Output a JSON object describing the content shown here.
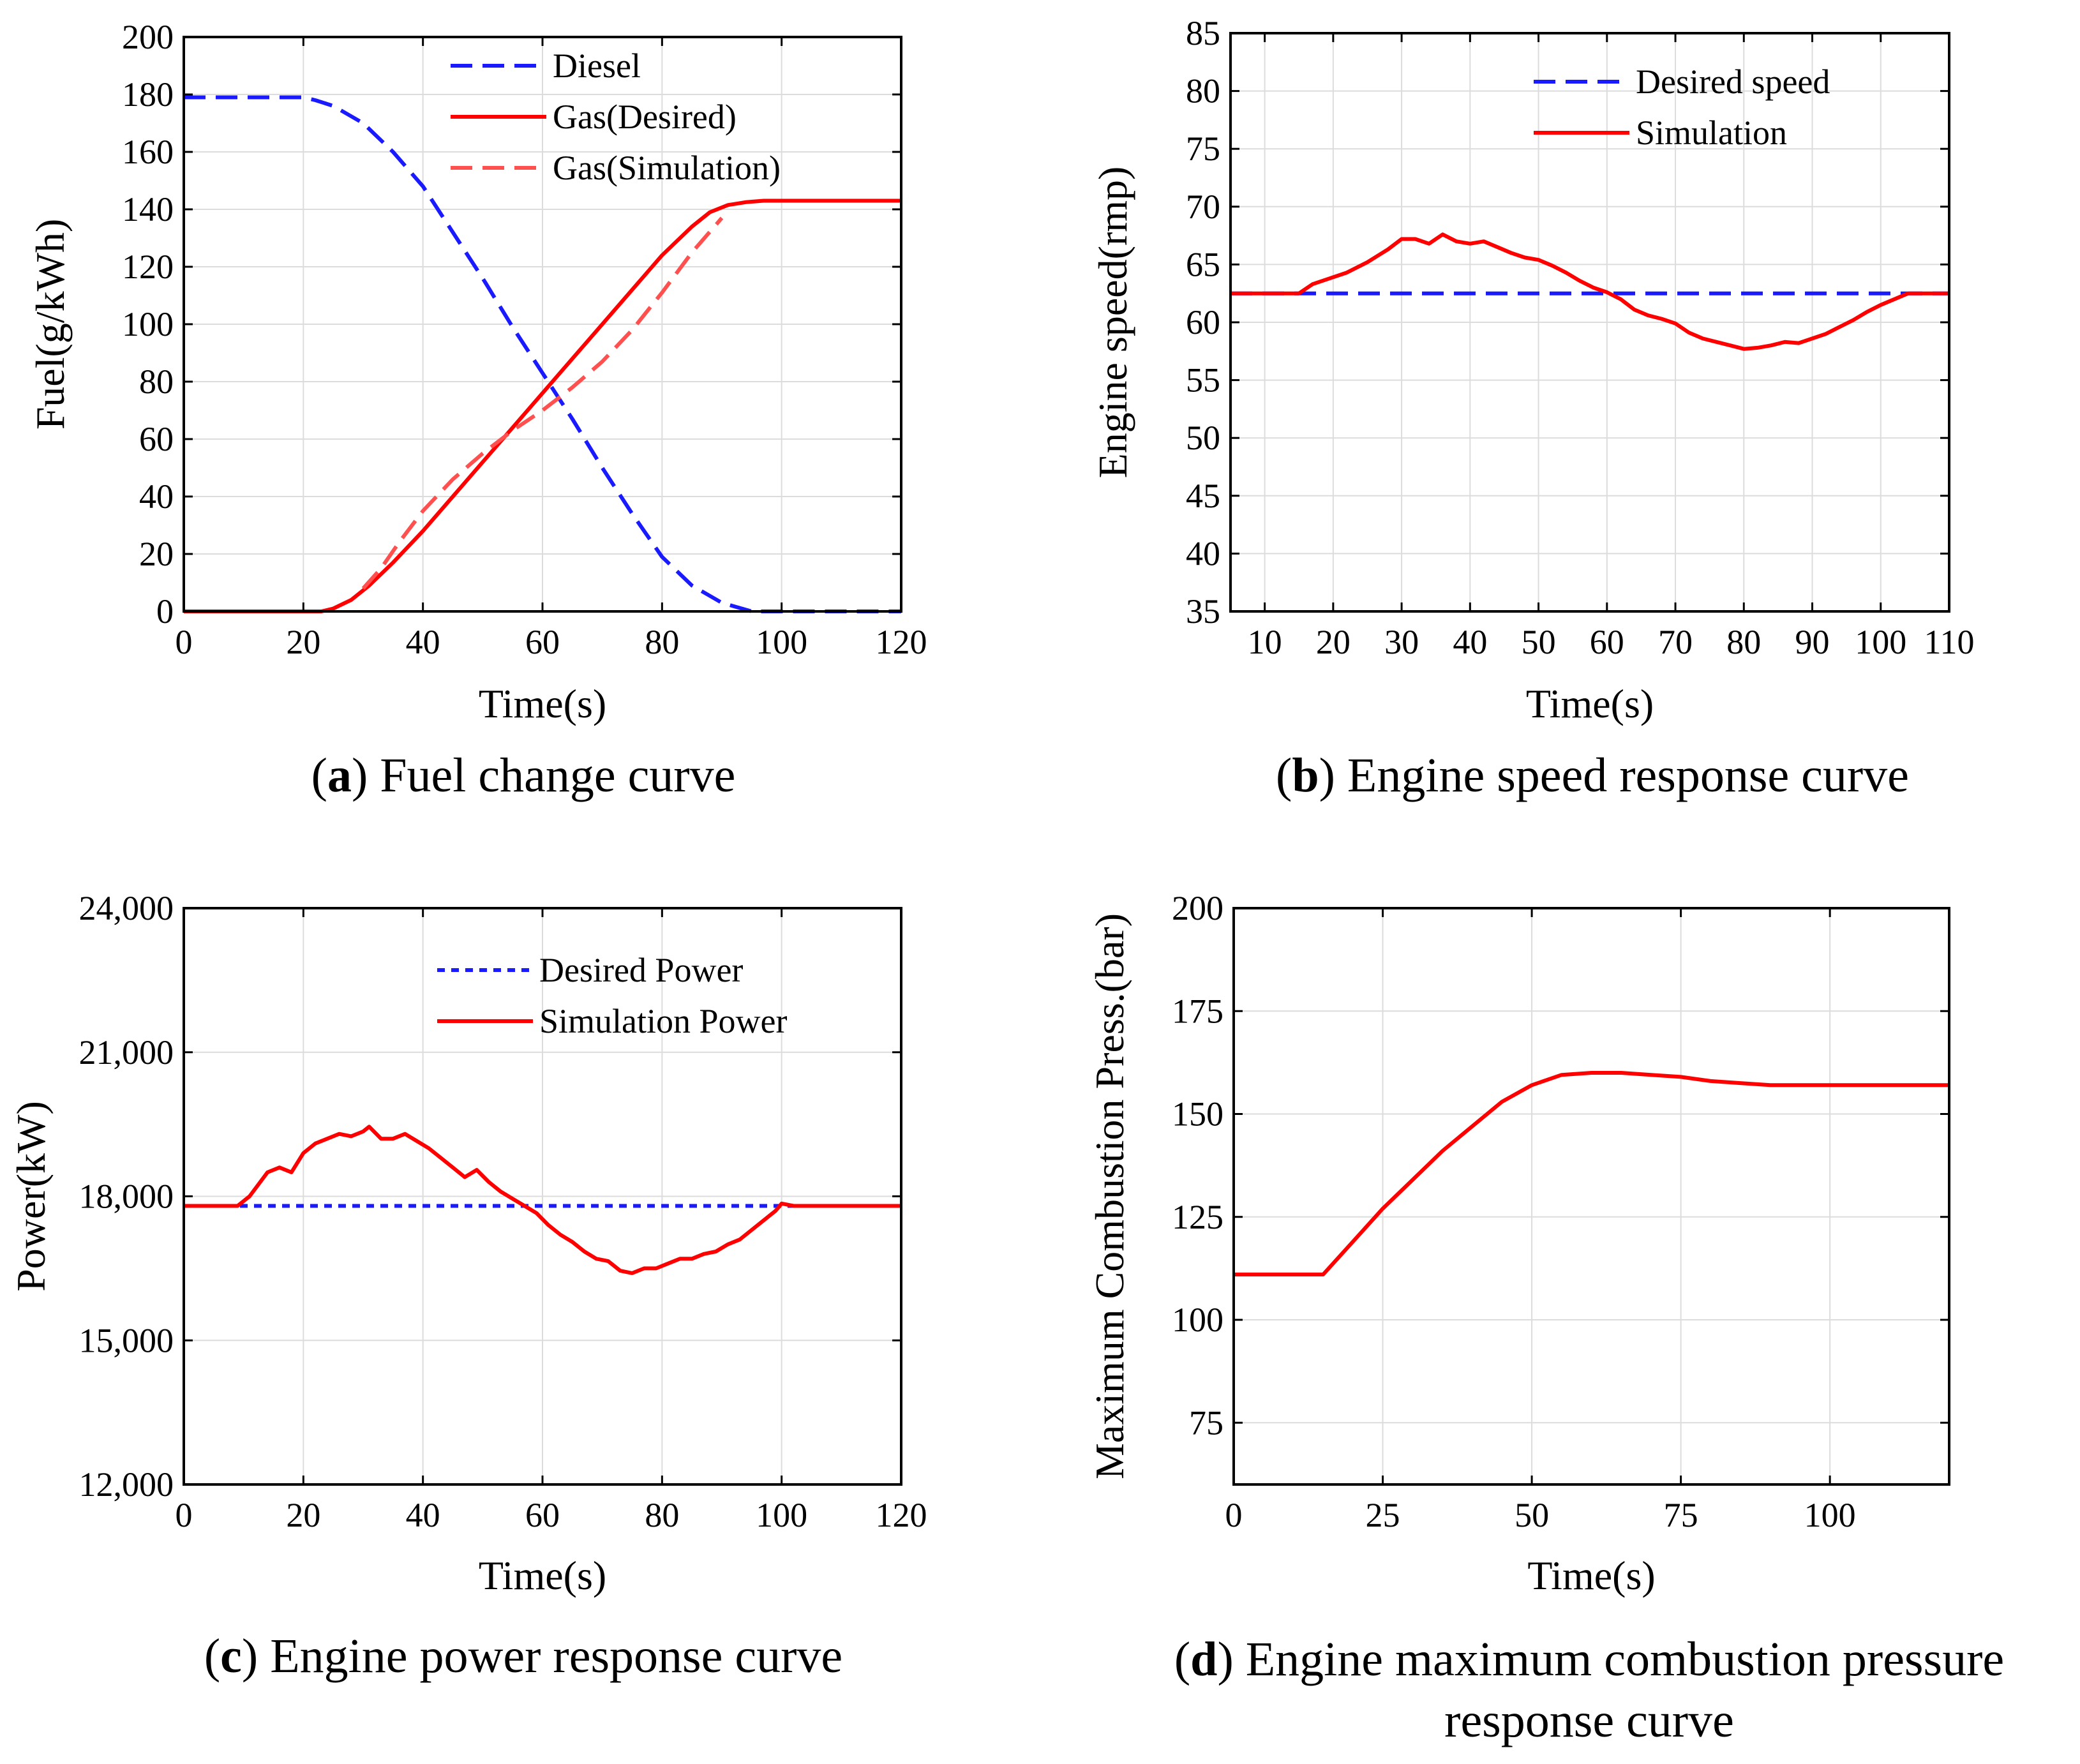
{
  "colors": {
    "blue": "#1a1aff",
    "red": "#ff0000",
    "light_red": "#ff5050",
    "grid": "#dcdcdc",
    "axis": "#000000"
  },
  "chart_data": [
    {
      "id": "a",
      "type": "line",
      "caption_letter": "a",
      "caption_text": " Fuel change curve",
      "xlabel": "Time(s)",
      "ylabel": "Fuel(g/kWh)",
      "xlim": [
        0,
        120
      ],
      "ylim": [
        0,
        200
      ],
      "xticks": [
        0,
        20,
        40,
        60,
        80,
        100,
        120
      ],
      "yticks": [
        0,
        20,
        40,
        60,
        80,
        100,
        120,
        140,
        160,
        180,
        200
      ],
      "xtick_labels": [
        "0",
        "20",
        "40",
        "60",
        "80",
        "100",
        "120"
      ],
      "ytick_labels": [
        "0",
        "20",
        "40",
        "60",
        "80",
        "100",
        "120",
        "140",
        "160",
        "180",
        "200"
      ],
      "grid": true,
      "legend": "top-center",
      "series": [
        {
          "name": "Diesel",
          "color": "#1a1aff",
          "style": "dashed",
          "x": [
            0,
            10,
            20,
            22,
            25,
            30,
            35,
            40,
            45,
            50,
            55,
            60,
            65,
            70,
            75,
            80,
            85,
            90,
            95,
            100,
            105,
            110,
            120
          ],
          "y": [
            179,
            179,
            179,
            178,
            176,
            170,
            160,
            148,
            132,
            116,
            99,
            83,
            67,
            50,
            34,
            19,
            9,
            3,
            0,
            0,
            0,
            0,
            0
          ]
        },
        {
          "name": "Gas(Desired)",
          "color": "#ff0000",
          "style": "solid",
          "x": [
            0,
            10,
            20,
            23,
            25,
            28,
            31,
            35,
            40,
            45,
            50,
            55,
            60,
            65,
            70,
            75,
            80,
            85,
            88,
            91,
            94,
            97,
            100,
            105,
            110,
            120
          ],
          "y": [
            0,
            0,
            0,
            0,
            1,
            4,
            9,
            17,
            28,
            40,
            52,
            64,
            76,
            88,
            100,
            112,
            124,
            134,
            139,
            141.5,
            142.5,
            143,
            143,
            143,
            143,
            143
          ]
        },
        {
          "name": "Gas(Simulation)",
          "color": "#ff5050",
          "style": "dashed",
          "x": [
            30,
            33,
            36,
            40,
            45,
            50,
            55,
            60,
            65,
            70,
            75,
            80,
            85,
            90
          ],
          "y": [
            8,
            15,
            24,
            35,
            46,
            55,
            63,
            70,
            78,
            87,
            98,
            111,
            125,
            137
          ]
        }
      ]
    },
    {
      "id": "b",
      "type": "line",
      "caption_letter": "b",
      "caption_text": " Engine speed response curve",
      "xlabel": "Time(s)",
      "ylabel": "Engine speed(rmp)",
      "xlim": [
        5,
        110
      ],
      "ylim": [
        35,
        85
      ],
      "xticks": [
        10,
        20,
        30,
        40,
        50,
        60,
        70,
        80,
        90,
        100,
        110
      ],
      "yticks": [
        35,
        40,
        45,
        50,
        55,
        60,
        65,
        70,
        75,
        80,
        85
      ],
      "xtick_labels": [
        "10",
        "20",
        "30",
        "40",
        "50",
        "60",
        "70",
        "80",
        "90",
        "100",
        "110"
      ],
      "ytick_labels": [
        "35",
        "40",
        "45",
        "50",
        "55",
        "60",
        "65",
        "70",
        "75",
        "80",
        "85"
      ],
      "grid": true,
      "legend": "top-right",
      "series": [
        {
          "name": "Desired speed",
          "color": "#1a1aff",
          "style": "dashed",
          "x": [
            5,
            110
          ],
          "y": [
            62.5,
            62.5
          ]
        },
        {
          "name": "Simulation",
          "color": "#ff0000",
          "style": "solid",
          "x": [
            5,
            15,
            17,
            20,
            22,
            25,
            28,
            30,
            32,
            34,
            36,
            38,
            40,
            42,
            44,
            46,
            48,
            50,
            52,
            54,
            56,
            58,
            60,
            62,
            64,
            66,
            68,
            70,
            72,
            74,
            76,
            78,
            80,
            82,
            84,
            86,
            88,
            90,
            92,
            94,
            96,
            98,
            100,
            102,
            104,
            106,
            110
          ],
          "y": [
            62.5,
            62.5,
            63.3,
            63.9,
            64.3,
            65.2,
            66.3,
            67.2,
            67.2,
            66.8,
            67.6,
            67.0,
            66.8,
            67.0,
            66.5,
            66.0,
            65.6,
            65.4,
            64.9,
            64.3,
            63.6,
            63.0,
            62.6,
            62.0,
            61.1,
            60.6,
            60.3,
            59.9,
            59.1,
            58.6,
            58.3,
            58.0,
            57.7,
            57.8,
            58.0,
            58.3,
            58.2,
            58.6,
            59.0,
            59.6,
            60.2,
            60.9,
            61.5,
            62.0,
            62.5,
            62.5,
            62.5
          ]
        }
      ]
    },
    {
      "id": "c",
      "type": "line",
      "caption_letter": "c",
      "caption_text": " Engine power response curve",
      "xlabel": "Time(s)",
      "ylabel": "Power(kW)",
      "xlim": [
        0,
        120
      ],
      "ylim": [
        12000,
        24000
      ],
      "xticks": [
        0,
        20,
        40,
        60,
        80,
        100,
        120
      ],
      "yticks": [
        12000,
        15000,
        18000,
        21000,
        24000
      ],
      "xtick_labels": [
        "0",
        "20",
        "40",
        "60",
        "80",
        "100",
        "120"
      ],
      "ytick_labels": [
        "12,000",
        "15,000",
        "18,000",
        "21,000",
        "24,000"
      ],
      "grid": true,
      "legend": "top-right",
      "series": [
        {
          "name": "Desired Power",
          "color": "#1a1aff",
          "style": "dotted",
          "x": [
            0,
            120
          ],
          "y": [
            17800,
            17800
          ]
        },
        {
          "name": "Simulation Power",
          "color": "#ff0000",
          "style": "solid",
          "x": [
            0,
            9,
            11,
            14,
            16,
            18,
            20,
            22,
            24,
            26,
            28,
            30,
            31,
            33,
            35,
            37,
            39,
            41,
            43,
            45,
            47,
            49,
            51,
            53,
            55,
            57,
            59,
            61,
            63,
            65,
            67,
            69,
            71,
            73,
            75,
            77,
            79,
            81,
            83,
            85,
            87,
            89,
            91,
            93,
            95,
            97,
            99,
            100,
            102,
            120
          ],
          "y": [
            17800,
            17800,
            18000,
            18500,
            18600,
            18500,
            18900,
            19100,
            19200,
            19300,
            19250,
            19350,
            19450,
            19200,
            19200,
            19300,
            19150,
            19000,
            18800,
            18600,
            18400,
            18550,
            18300,
            18100,
            17950,
            17800,
            17650,
            17400,
            17200,
            17050,
            16850,
            16700,
            16650,
            16450,
            16400,
            16500,
            16500,
            16600,
            16700,
            16700,
            16800,
            16850,
            17000,
            17100,
            17300,
            17500,
            17700,
            17850,
            17800,
            17800
          ]
        }
      ]
    },
    {
      "id": "d",
      "type": "line",
      "caption_letter": "d",
      "caption_text": " Engine maximum combustion pressure",
      "caption_line2": "response curve",
      "xlabel": "Time(s)",
      "ylabel": "Maximum Combustion Press.(bar)",
      "xlim": [
        0,
        120
      ],
      "ylim": [
        60,
        200
      ],
      "xticks": [
        0,
        25,
        50,
        75,
        100
      ],
      "yticks": [
        75,
        100,
        125,
        150,
        175,
        200
      ],
      "xtick_labels": [
        "0",
        "25",
        "50",
        "75",
        "100"
      ],
      "ytick_labels": [
        "75",
        "100",
        "125",
        "150",
        "175",
        "200"
      ],
      "grid": true,
      "legend": "none",
      "series": [
        {
          "color": "#ff0000",
          "style": "solid",
          "x": [
            0,
            15,
            20,
            25,
            30,
            35,
            40,
            45,
            50,
            55,
            60,
            65,
            70,
            75,
            80,
            85,
            90,
            95,
            100,
            110,
            120
          ],
          "y": [
            111,
            111,
            119,
            127,
            134,
            141,
            147,
            153,
            157,
            159.5,
            160,
            160,
            159.5,
            159,
            158,
            157.5,
            157,
            157,
            157,
            157,
            157
          ]
        }
      ]
    }
  ]
}
